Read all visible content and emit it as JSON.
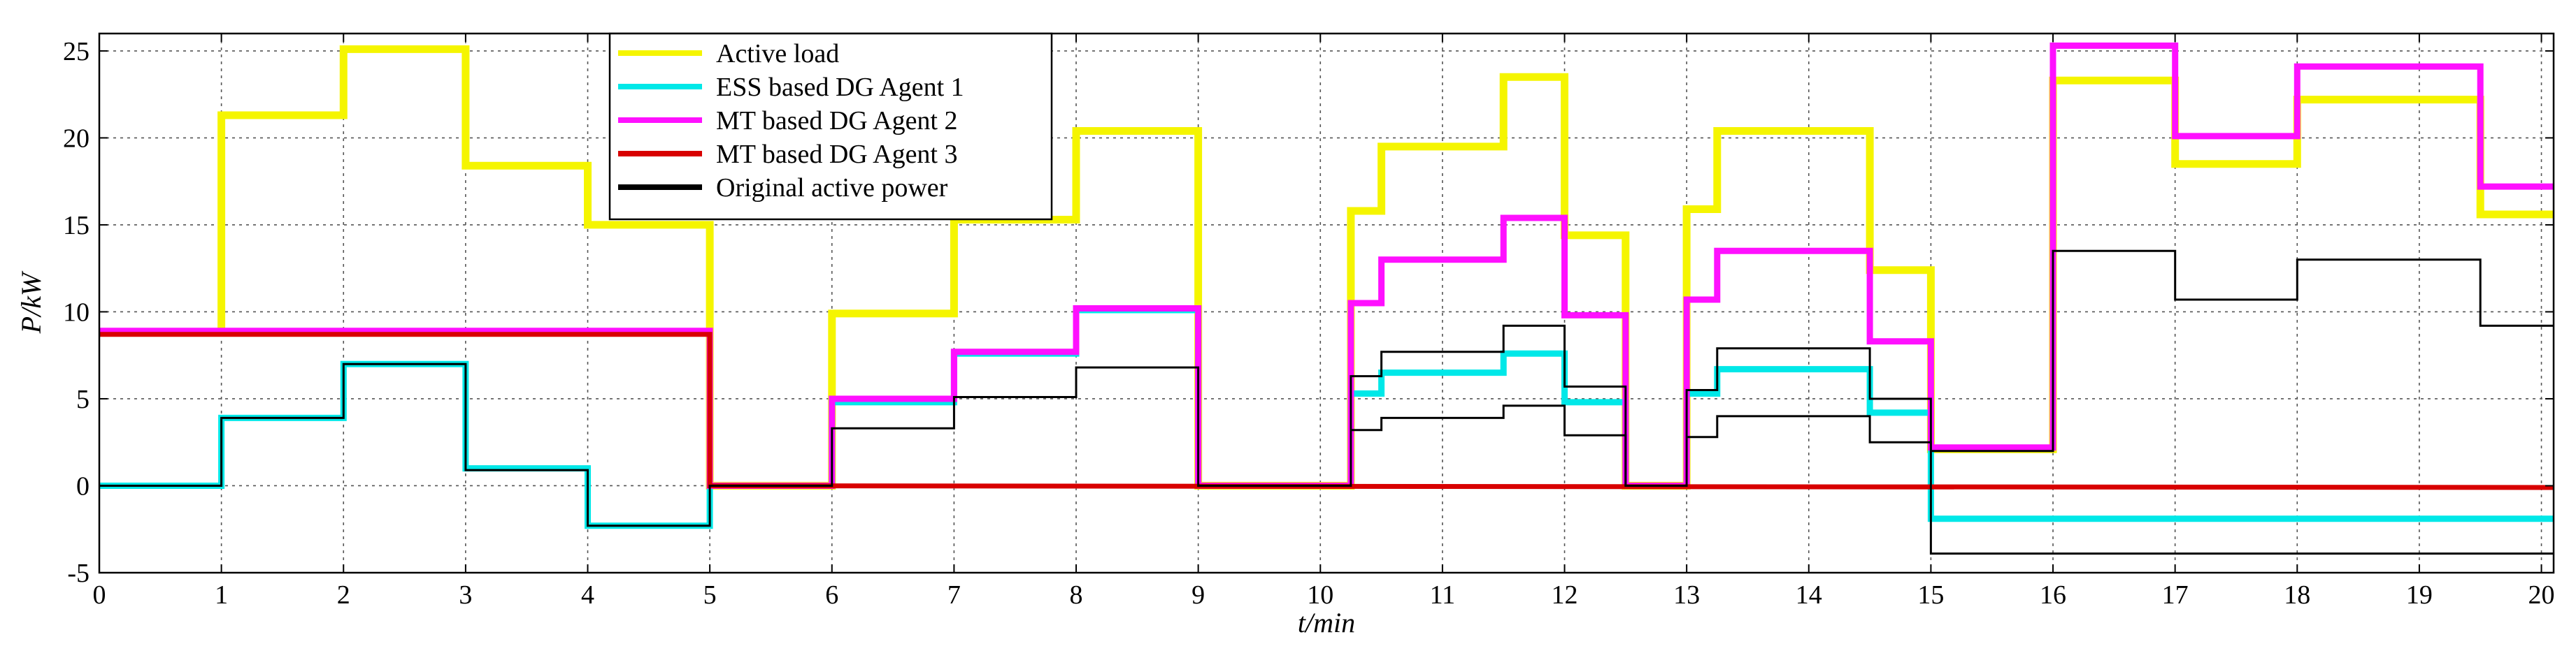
{
  "chart_data": {
    "type": "line",
    "title": "",
    "xlabel": "t/min",
    "ylabel": "P/kW",
    "xlim": [
      0,
      20.1
    ],
    "ylim": [
      -5,
      26
    ],
    "xticks": [
      0,
      1,
      2,
      3,
      4,
      5,
      6,
      7,
      8,
      9,
      10,
      11,
      12,
      13,
      14,
      15,
      16,
      17,
      18,
      19,
      20
    ],
    "yticks": [
      -5,
      0,
      5,
      10,
      15,
      20,
      25
    ],
    "grid": true,
    "legend_position": "top-center",
    "series": [
      {
        "name": "Active load",
        "color": "#f5f500",
        "points": [
          [
            0,
            8.8
          ],
          [
            1,
            8.8
          ],
          [
            1,
            21.3
          ],
          [
            2,
            21.3
          ],
          [
            2,
            25.1
          ],
          [
            3,
            25.1
          ],
          [
            3,
            18.4
          ],
          [
            4,
            18.4
          ],
          [
            4,
            15.0
          ],
          [
            5,
            15.0
          ],
          [
            5,
            0
          ],
          [
            6,
            0
          ],
          [
            6,
            9.9
          ],
          [
            7,
            9.9
          ],
          [
            7,
            15.3
          ],
          [
            8,
            15.3
          ],
          [
            8,
            20.4
          ],
          [
            9,
            20.4
          ],
          [
            9,
            0
          ],
          [
            10.25,
            0
          ],
          [
            10.25,
            15.8
          ],
          [
            10.5,
            15.8
          ],
          [
            10.5,
            19.5
          ],
          [
            11.5,
            19.5
          ],
          [
            11.5,
            23.5
          ],
          [
            12,
            23.5
          ],
          [
            12,
            14.4
          ],
          [
            12.5,
            14.4
          ],
          [
            12.5,
            0
          ],
          [
            13,
            0
          ],
          [
            13,
            15.9
          ],
          [
            13.25,
            15.9
          ],
          [
            13.25,
            20.4
          ],
          [
            14.5,
            20.4
          ],
          [
            14.5,
            12.4
          ],
          [
            15,
            12.4
          ],
          [
            15,
            2.1
          ],
          [
            16,
            2.1
          ],
          [
            16,
            23.3
          ],
          [
            17,
            23.3
          ],
          [
            17,
            18.5
          ],
          [
            18,
            18.5
          ],
          [
            18,
            22.2
          ],
          [
            19.5,
            22.2
          ],
          [
            19.5,
            15.6
          ],
          [
            20.1,
            15.6
          ]
        ]
      },
      {
        "name": "ESS based DG Agent 1",
        "color": "#00e8e8",
        "points": [
          [
            0,
            0
          ],
          [
            1,
            0
          ],
          [
            1,
            3.9
          ],
          [
            2,
            3.9
          ],
          [
            2,
            7.0
          ],
          [
            3,
            7.0
          ],
          [
            3,
            1.0
          ],
          [
            4,
            1.0
          ],
          [
            4,
            -2.3
          ],
          [
            5,
            -2.3
          ],
          [
            5,
            0
          ],
          [
            6,
            0
          ],
          [
            6,
            4.8
          ],
          [
            7,
            4.8
          ],
          [
            7,
            7.6
          ],
          [
            8,
            7.6
          ],
          [
            8,
            10.1
          ],
          [
            9,
            10.1
          ],
          [
            9,
            0
          ],
          [
            10.25,
            0
          ],
          [
            10.25,
            5.3
          ],
          [
            10.5,
            5.3
          ],
          [
            10.5,
            6.5
          ],
          [
            11.5,
            6.5
          ],
          [
            11.5,
            7.6
          ],
          [
            12,
            7.6
          ],
          [
            12,
            4.8
          ],
          [
            12.5,
            4.8
          ],
          [
            12.5,
            0
          ],
          [
            13,
            0
          ],
          [
            13,
            5.3
          ],
          [
            13.25,
            5.3
          ],
          [
            13.25,
            6.7
          ],
          [
            14.5,
            6.7
          ],
          [
            14.5,
            4.2
          ],
          [
            15,
            4.2
          ],
          [
            15,
            -1.9
          ],
          [
            20.1,
            -1.9
          ]
        ]
      },
      {
        "name": "MT based DG Agent 2",
        "color": "#ff10ff",
        "points": [
          [
            0,
            8.9
          ],
          [
            5,
            8.9
          ],
          [
            5,
            0
          ],
          [
            6,
            0
          ],
          [
            6,
            5.0
          ],
          [
            7,
            5.0
          ],
          [
            7,
            7.7
          ],
          [
            8,
            7.7
          ],
          [
            8,
            10.2
          ],
          [
            9,
            10.2
          ],
          [
            9,
            0
          ],
          [
            10.25,
            0
          ],
          [
            10.25,
            10.5
          ],
          [
            10.5,
            10.5
          ],
          [
            10.5,
            13.0
          ],
          [
            11.5,
            13.0
          ],
          [
            11.5,
            15.4
          ],
          [
            12,
            15.4
          ],
          [
            12,
            9.8
          ],
          [
            12.5,
            9.8
          ],
          [
            12.5,
            0
          ],
          [
            13,
            0
          ],
          [
            13,
            10.7
          ],
          [
            13.25,
            10.7
          ],
          [
            13.25,
            13.5
          ],
          [
            14.5,
            13.5
          ],
          [
            14.5,
            8.3
          ],
          [
            15,
            8.3
          ],
          [
            15,
            2.2
          ],
          [
            16,
            2.2
          ],
          [
            16,
            25.3
          ],
          [
            17,
            25.3
          ],
          [
            17,
            20.1
          ],
          [
            18,
            20.1
          ],
          [
            18,
            24.1
          ],
          [
            19.5,
            24.1
          ],
          [
            19.5,
            17.2
          ],
          [
            20.1,
            17.2
          ]
        ]
      },
      {
        "name": "MT based DG Agent 3",
        "color": "#d80000",
        "points": [
          [
            0,
            8.7
          ],
          [
            5,
            8.7
          ],
          [
            5,
            0
          ],
          [
            20.1,
            -0.1
          ]
        ]
      },
      {
        "name": "Original active power",
        "color": "#000000",
        "segments": [
          [
            [
              0,
              0
            ],
            [
              1,
              0
            ],
            [
              1,
              3.9
            ],
            [
              2,
              3.9
            ],
            [
              2,
              7.0
            ],
            [
              3,
              7.0
            ],
            [
              3,
              0.9
            ],
            [
              4,
              0.9
            ],
            [
              4,
              -2.3
            ],
            [
              5,
              -2.3
            ],
            [
              5,
              0
            ],
            [
              6,
              0
            ],
            [
              6,
              3.3
            ],
            [
              7,
              3.3
            ],
            [
              7,
              5.1
            ],
            [
              8,
              5.1
            ],
            [
              8,
              6.8
            ],
            [
              9,
              6.8
            ],
            [
              9,
              0
            ],
            [
              10.25,
              0
            ],
            [
              10.25,
              6.3
            ],
            [
              10.5,
              6.3
            ],
            [
              10.5,
              7.7
            ],
            [
              11.5,
              7.7
            ],
            [
              11.5,
              9.2
            ],
            [
              12,
              9.2
            ],
            [
              12,
              5.7
            ],
            [
              12.5,
              5.7
            ],
            [
              12.5,
              0
            ],
            [
              13,
              0
            ],
            [
              13,
              5.5
            ],
            [
              13.25,
              5.5
            ],
            [
              13.25,
              7.9
            ],
            [
              14.5,
              7.9
            ],
            [
              14.5,
              5.0
            ],
            [
              15,
              5.0
            ],
            [
              15,
              2.0
            ],
            [
              16,
              2.0
            ],
            [
              16,
              13.5
            ],
            [
              17,
              13.5
            ],
            [
              17,
              10.7
            ],
            [
              18,
              10.7
            ],
            [
              18,
              13.0
            ],
            [
              19.5,
              13.0
            ],
            [
              19.5,
              9.2
            ],
            [
              20.1,
              9.2
            ]
          ],
          [
            [
              10.25,
              3.2
            ],
            [
              10.5,
              3.2
            ],
            [
              10.5,
              3.9
            ],
            [
              11.5,
              3.9
            ],
            [
              11.5,
              4.6
            ],
            [
              12,
              4.6
            ],
            [
              12,
              2.9
            ],
            [
              12.5,
              2.9
            ],
            [
              12.5,
              0
            ]
          ],
          [
            [
              13,
              2.8
            ],
            [
              13.25,
              2.8
            ],
            [
              13.25,
              4.0
            ],
            [
              14.5,
              4.0
            ],
            [
              14.5,
              2.5
            ],
            [
              15,
              2.5
            ],
            [
              15,
              -3.9
            ],
            [
              20.1,
              -3.9
            ]
          ]
        ]
      }
    ]
  }
}
